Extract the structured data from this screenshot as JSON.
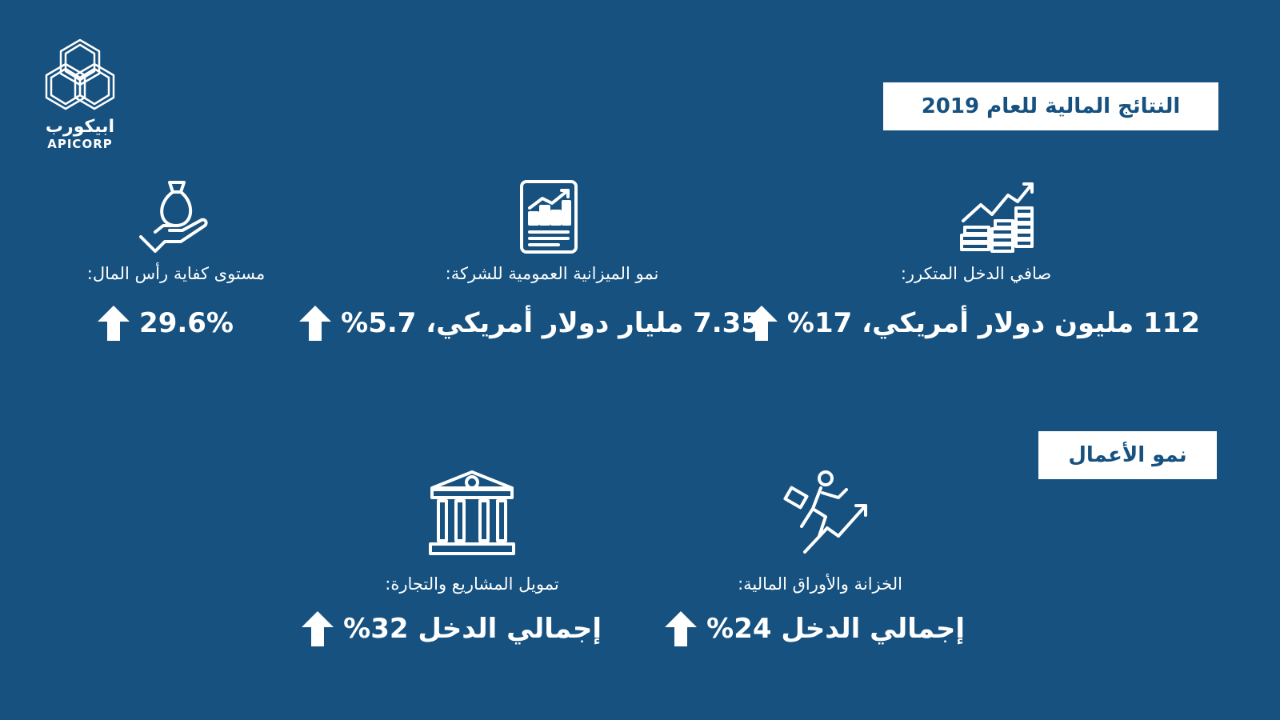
{
  "logo": {
    "arabic": "ابيكورب",
    "latin": "APICORP"
  },
  "colors": {
    "background": "#16517f",
    "foreground": "#ffffff"
  },
  "section_financial": {
    "title": "النتائج المالية للعام 2019",
    "items": [
      {
        "icon": "coins-growth-icon",
        "label": "صافي الدخل المتكرر:",
        "value": "112 مليون دولار أمريكي، 17%",
        "trend": "up"
      },
      {
        "icon": "report-chart-icon",
        "label": "نمو الميزانية العمومية للشركة:",
        "value": "7.35 مليار دولار أمريكي، 5.7%",
        "trend": "up"
      },
      {
        "icon": "money-bag-hand-icon",
        "label": "مستوى كفاية رأس المال:",
        "value": "29.6%",
        "trend": "up"
      }
    ]
  },
  "section_business": {
    "title": "نمو الأعمال",
    "items": [
      {
        "icon": "businessman-growth-icon",
        "label": "الخزانة والأوراق المالية:",
        "value": "إجمالي الدخل 24%",
        "trend": "up"
      },
      {
        "icon": "bank-icon",
        "label": "تمويل المشاريع والتجارة:",
        "value": "إجمالي الدخل 32%",
        "trend": "up"
      }
    ]
  }
}
